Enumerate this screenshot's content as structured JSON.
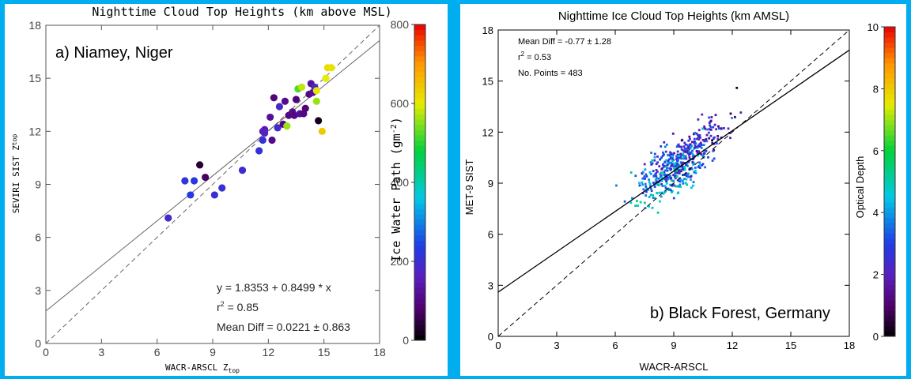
{
  "chart_data": [
    {
      "type": "scatter",
      "title": "Nighttime Cloud Top Heights (km above MSL)",
      "location_label": "a) Niamey, Niger",
      "xlabel": "WACR-ARSCL Z",
      "xlabel_sub": "top",
      "ylabel": "SEVIRI SIST Z",
      "ylabel_sub": "top",
      "xlim": [
        0,
        18
      ],
      "ylim": [
        0,
        18
      ],
      "xticks": [
        "0",
        "3",
        "6",
        "9",
        "12",
        "15",
        "18"
      ],
      "yticks": [
        "0",
        "3",
        "6",
        "9",
        "12",
        "15",
        "18"
      ],
      "regression": {
        "intercept": 1.8353,
        "slope": 0.8499
      },
      "stats": {
        "equation": "y = 1.8353 + 0.8499 * x",
        "r2_prefix": "r",
        "r2_sup": "2",
        "r2_value": " = 0.85",
        "mean_diff": "Mean Diff = 0.0221 ± 0.863"
      },
      "colorbar": {
        "label_main": "Ice Water Path (gm",
        "label_sup": "-2",
        "label_end": ")",
        "min": 0,
        "max": 800,
        "ticks": [
          "0",
          "200",
          "400",
          "600",
          "800"
        ]
      },
      "points": [
        [
          6.6,
          7.1,
          190
        ],
        [
          7.5,
          9.2,
          220
        ],
        [
          7.8,
          8.4,
          230
        ],
        [
          8.0,
          9.2,
          230
        ],
        [
          8.3,
          10.1,
          40
        ],
        [
          8.6,
          9.4,
          70
        ],
        [
          9.1,
          8.4,
          200
        ],
        [
          9.5,
          8.8,
          210
        ],
        [
          10.6,
          9.8,
          200
        ],
        [
          11.5,
          10.9,
          210
        ],
        [
          11.7,
          11.5,
          210
        ],
        [
          11.7,
          12.0,
          160
        ],
        [
          11.8,
          12.1,
          150
        ],
        [
          11.8,
          11.9,
          170
        ],
        [
          12.1,
          12.8,
          120
        ],
        [
          12.2,
          11.5,
          110
        ],
        [
          12.3,
          13.9,
          90
        ],
        [
          12.5,
          12.2,
          190
        ],
        [
          12.6,
          13.4,
          180
        ],
        [
          12.8,
          12.4,
          100
        ],
        [
          12.9,
          13.7,
          110
        ],
        [
          13.0,
          12.3,
          560
        ],
        [
          13.1,
          12.9,
          100
        ],
        [
          13.3,
          13.1,
          110
        ],
        [
          13.4,
          12.9,
          100
        ],
        [
          13.5,
          13.8,
          90
        ],
        [
          13.6,
          14.4,
          520
        ],
        [
          13.7,
          13.0,
          120
        ],
        [
          13.8,
          14.5,
          580
        ],
        [
          13.9,
          13.0,
          100
        ],
        [
          14.0,
          13.3,
          90
        ],
        [
          14.2,
          14.1,
          100
        ],
        [
          14.3,
          14.7,
          130
        ],
        [
          14.4,
          14.2,
          120
        ],
        [
          14.5,
          14.5,
          180
        ],
        [
          14.6,
          14.3,
          610
        ],
        [
          14.6,
          13.7,
          560
        ],
        [
          14.7,
          12.6,
          20
        ],
        [
          14.9,
          12.0,
          640
        ],
        [
          15.1,
          15.0,
          600
        ],
        [
          15.2,
          15.6,
          620
        ],
        [
          15.4,
          15.6,
          610
        ]
      ]
    },
    {
      "type": "scatter",
      "title": "Nighttime Ice Cloud Top Heights (km AMSL)",
      "location_label": "b) Black Forest, Germany",
      "xlabel": "WACR-ARSCL",
      "ylabel": "MET-9 SIST",
      "xlim": [
        0,
        18
      ],
      "ylim": [
        0,
        18
      ],
      "xticks": [
        "0",
        "3",
        "6",
        "9",
        "12",
        "15",
        "18"
      ],
      "yticks": [
        "0",
        "3",
        "6",
        "9",
        "12",
        "15",
        "18"
      ],
      "regression": {
        "intercept": 2.6,
        "slope": 0.79
      },
      "stats": {
        "mean_diff": "Mean Diff = -0.77 ±  1.28",
        "r2_prefix": "r",
        "r2_sup": "2",
        "r2_value": " = 0.53",
        "n_points": "No. Points =  483"
      },
      "colorbar": {
        "label": "Optical Depth",
        "min": 0,
        "max": 10,
        "ticks": [
          "0",
          "2",
          "4",
          "6",
          "8",
          "10"
        ]
      },
      "n_points": 483
    }
  ]
}
